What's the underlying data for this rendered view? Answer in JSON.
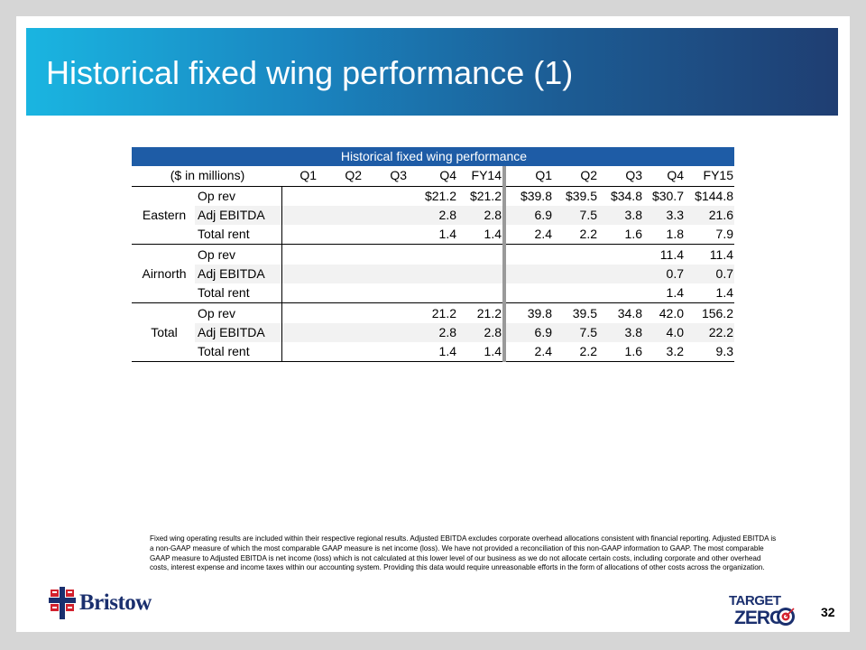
{
  "slide": {
    "title": "Historical fixed wing performance (1)",
    "page_number": "32"
  },
  "table": {
    "title": "Historical fixed wing performance",
    "unit_label": "($ in millions)",
    "columns": [
      "Q1",
      "Q2",
      "Q3",
      "Q4",
      "FY14",
      "Q1",
      "Q2",
      "Q3",
      "Q4",
      "FY15"
    ],
    "groups": [
      {
        "region": "Eastern",
        "rows": [
          {
            "metric": "Op rev",
            "values": [
              "",
              "",
              "",
              "$21.2",
              "$21.2",
              "$39.8",
              "$39.5",
              "$34.8",
              "$30.7",
              "$144.8"
            ]
          },
          {
            "metric": "Adj EBITDA",
            "values": [
              "",
              "",
              "",
              "2.8",
              "2.8",
              "6.9",
              "7.5",
              "3.8",
              "3.3",
              "21.6"
            ]
          },
          {
            "metric": "Total rent",
            "values": [
              "",
              "",
              "",
              "1.4",
              "1.4",
              "2.4",
              "2.2",
              "1.6",
              "1.8",
              "7.9"
            ]
          }
        ]
      },
      {
        "region": "Airnorth",
        "rows": [
          {
            "metric": "Op rev",
            "values": [
              "",
              "",
              "",
              "",
              "",
              "",
              "",
              "",
              "11.4",
              "11.4"
            ]
          },
          {
            "metric": "Adj EBITDA",
            "values": [
              "",
              "",
              "",
              "",
              "",
              "",
              "",
              "",
              "0.7",
              "0.7"
            ]
          },
          {
            "metric": "Total rent",
            "values": [
              "",
              "",
              "",
              "",
              "",
              "",
              "",
              "",
              "1.4",
              "1.4"
            ]
          }
        ]
      },
      {
        "region": "Total",
        "rows": [
          {
            "metric": "Op rev",
            "values": [
              "",
              "",
              "",
              "21.2",
              "21.2",
              "39.8",
              "39.5",
              "34.8",
              "42.0",
              "156.2"
            ]
          },
          {
            "metric": "Adj EBITDA",
            "values": [
              "",
              "",
              "",
              "2.8",
              "2.8",
              "6.9",
              "7.5",
              "3.8",
              "4.0",
              "22.2"
            ]
          },
          {
            "metric": "Total rent",
            "values": [
              "",
              "",
              "",
              "1.4",
              "1.4",
              "2.4",
              "2.2",
              "1.6",
              "3.2",
              "9.3"
            ]
          }
        ]
      }
    ]
  },
  "footnote": "Fixed wing operating results are included within their respective regional results. Adjusted EBITDA excludes corporate overhead allocations consistent with financial reporting. Adjusted EBITDA is a non-GAAP measure of which the most comparable GAAP measure is net income (loss). We have not provided a reconciliation of this non-GAAP information to GAAP. The most comparable GAAP measure to Adjusted EBITDA is net income (loss) which is not calculated at this lower level of our business as we do not allocate certain costs, including corporate and other overhead costs, interest expense and income taxes within our accounting system. Providing this data would require unreasonable efforts in the form of allocations of other costs across the organization.",
  "logos": {
    "bristow": "Bristow",
    "target_line1": "TARGET",
    "target_line2": "ZERO"
  },
  "colors": {
    "table_header": "#1e5ca6",
    "brand_navy": "#1a2f6e",
    "brand_red": "#d3212d"
  },
  "icons": {
    "bristow_mark": "bristow-flag-icon",
    "target": "target-bullseye-icon"
  }
}
